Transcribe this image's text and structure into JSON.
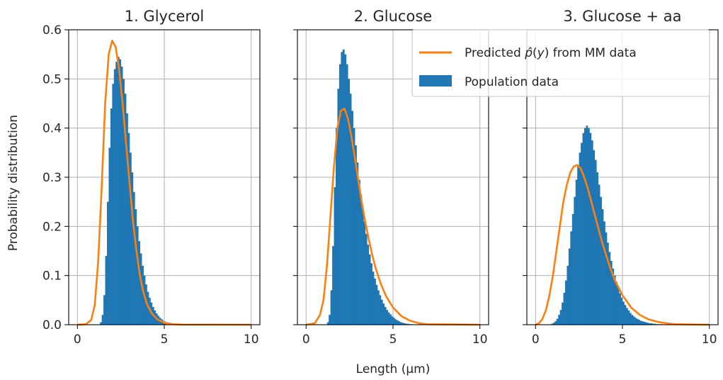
{
  "chart_data": [
    {
      "type": "bar",
      "title": "1. Glycerol",
      "xlim": [
        -0.5,
        10.5
      ],
      "ylim": [
        0,
        0.6
      ],
      "xticks": [
        "0",
        "5",
        "10"
      ],
      "yticks": [
        "0.0",
        "0.1",
        "0.2",
        "0.3",
        "0.4",
        "0.5",
        "0.6"
      ],
      "grid": true,
      "series": [
        {
          "name": "Population data",
          "kind": "histogram",
          "color": "#1f77b4",
          "x": [
            1.3,
            1.4,
            1.5,
            1.6,
            1.7,
            1.8,
            1.9,
            2.0,
            2.1,
            2.2,
            2.3,
            2.4,
            2.5,
            2.6,
            2.7,
            2.8,
            2.9,
            3.0,
            3.1,
            3.2,
            3.3,
            3.4,
            3.5,
            3.6,
            3.7,
            3.8,
            3.9,
            4.0,
            4.1,
            4.2,
            4.3,
            4.4,
            4.5,
            4.6,
            4.7,
            4.8,
            4.9,
            5.0,
            5.1,
            5.2,
            5.3,
            5.4,
            5.5,
            5.6,
            5.7,
            5.8,
            5.9
          ],
          "values": [
            0.005,
            0.02,
            0.06,
            0.14,
            0.25,
            0.36,
            0.44,
            0.49,
            0.52,
            0.535,
            0.545,
            0.54,
            0.525,
            0.5,
            0.47,
            0.43,
            0.39,
            0.35,
            0.31,
            0.27,
            0.235,
            0.2,
            0.17,
            0.145,
            0.12,
            0.1,
            0.082,
            0.067,
            0.055,
            0.045,
            0.036,
            0.029,
            0.023,
            0.018,
            0.014,
            0.011,
            0.008,
            0.006,
            0.005,
            0.004,
            0.003,
            0.002,
            0.002,
            0.001,
            0.001,
            0.001,
            0.001
          ]
        },
        {
          "name": "Predicted $\\hat{p}(y)$ from MM data",
          "kind": "line",
          "color": "#ff7f0e",
          "x": [
            0,
            0.5,
            0.8,
            1.0,
            1.2,
            1.4,
            1.6,
            1.8,
            2.0,
            2.2,
            2.4,
            2.6,
            2.8,
            3.0,
            3.2,
            3.4,
            3.6,
            3.8,
            4.0,
            4.3,
            4.6,
            5.0,
            5.5,
            6.0,
            10.0
          ],
          "values": [
            0,
            0.001,
            0.01,
            0.04,
            0.13,
            0.28,
            0.45,
            0.55,
            0.578,
            0.565,
            0.52,
            0.45,
            0.37,
            0.29,
            0.21,
            0.15,
            0.1,
            0.066,
            0.042,
            0.022,
            0.011,
            0.004,
            0.001,
            0.0003,
            0
          ]
        }
      ]
    },
    {
      "type": "bar",
      "title": "2. Glucose",
      "xlim": [
        -0.5,
        10.5
      ],
      "ylim": [
        0,
        0.6
      ],
      "xticks": [
        "0",
        "5",
        "10"
      ],
      "grid": true,
      "series": [
        {
          "name": "Population data",
          "kind": "histogram",
          "color": "#1f77b4",
          "x": [
            1.2,
            1.3,
            1.4,
            1.5,
            1.6,
            1.7,
            1.8,
            1.9,
            2.0,
            2.1,
            2.2,
            2.3,
            2.4,
            2.5,
            2.6,
            2.7,
            2.8,
            2.9,
            3.0,
            3.1,
            3.2,
            3.3,
            3.4,
            3.5,
            3.6,
            3.7,
            3.8,
            3.9,
            4.0,
            4.1,
            4.2,
            4.3,
            4.4,
            4.5,
            4.6,
            4.7,
            4.8,
            4.9,
            5.0,
            5.1,
            5.2,
            5.3,
            5.4,
            5.5,
            5.6,
            5.7,
            5.8,
            5.9,
            6.0
          ],
          "values": [
            0.005,
            0.02,
            0.07,
            0.16,
            0.28,
            0.4,
            0.48,
            0.53,
            0.555,
            0.56,
            0.55,
            0.53,
            0.5,
            0.47,
            0.435,
            0.4,
            0.365,
            0.33,
            0.295,
            0.265,
            0.235,
            0.21,
            0.185,
            0.163,
            0.143,
            0.125,
            0.108,
            0.094,
            0.081,
            0.07,
            0.06,
            0.051,
            0.043,
            0.036,
            0.03,
            0.025,
            0.021,
            0.017,
            0.014,
            0.011,
            0.009,
            0.007,
            0.005,
            0.004,
            0.003,
            0.002,
            0.002,
            0.001,
            0.001
          ]
        },
        {
          "name": "Predicted $\\hat{p}(y)$ from MM data",
          "kind": "line",
          "color": "#ff7f0e",
          "x": [
            0,
            0.5,
            0.8,
            1.0,
            1.2,
            1.4,
            1.6,
            1.8,
            2.0,
            2.2,
            2.4,
            2.6,
            2.8,
            3.0,
            3.2,
            3.4,
            3.6,
            3.8,
            4.0,
            4.3,
            4.6,
            5.0,
            5.5,
            6.0,
            6.5,
            7.0,
            10.0
          ],
          "values": [
            0,
            0.003,
            0.02,
            0.05,
            0.12,
            0.22,
            0.32,
            0.4,
            0.435,
            0.44,
            0.42,
            0.385,
            0.34,
            0.295,
            0.25,
            0.21,
            0.175,
            0.143,
            0.115,
            0.083,
            0.058,
            0.035,
            0.017,
            0.008,
            0.003,
            0.001,
            0
          ]
        }
      ]
    },
    {
      "type": "bar",
      "title": "3. Glucose + aa",
      "xlim": [
        -0.5,
        10.5
      ],
      "ylim": [
        0,
        0.6
      ],
      "xticks": [
        "0",
        "5",
        "10"
      ],
      "grid": true,
      "series": [
        {
          "name": "Population data",
          "kind": "histogram",
          "color": "#1f77b4",
          "x": [
            0.9,
            1.0,
            1.1,
            1.2,
            1.3,
            1.4,
            1.5,
            1.6,
            1.7,
            1.8,
            1.9,
            2.0,
            2.1,
            2.2,
            2.3,
            2.4,
            2.5,
            2.6,
            2.7,
            2.8,
            2.9,
            3.0,
            3.1,
            3.2,
            3.3,
            3.4,
            3.5,
            3.6,
            3.7,
            3.8,
            3.9,
            4.0,
            4.1,
            4.2,
            4.3,
            4.4,
            4.5,
            4.6,
            4.7,
            4.8,
            4.9,
            5.0,
            5.1,
            5.2,
            5.3,
            5.4,
            5.5,
            5.6,
            5.7,
            5.8,
            5.9,
            6.0,
            6.1,
            6.2,
            6.3,
            6.4,
            6.5,
            6.6,
            6.7,
            6.8,
            6.9,
            7.0,
            7.1,
            7.2
          ],
          "values": [
            0.002,
            0.004,
            0.007,
            0.012,
            0.02,
            0.03,
            0.045,
            0.065,
            0.09,
            0.12,
            0.155,
            0.19,
            0.225,
            0.26,
            0.295,
            0.325,
            0.35,
            0.37,
            0.39,
            0.4,
            0.405,
            0.4,
            0.39,
            0.375,
            0.355,
            0.335,
            0.31,
            0.285,
            0.26,
            0.235,
            0.21,
            0.188,
            0.167,
            0.148,
            0.13,
            0.114,
            0.1,
            0.087,
            0.075,
            0.064,
            0.055,
            0.047,
            0.04,
            0.034,
            0.029,
            0.024,
            0.02,
            0.017,
            0.014,
            0.012,
            0.01,
            0.008,
            0.007,
            0.006,
            0.005,
            0.004,
            0.003,
            0.003,
            0.002,
            0.002,
            0.001,
            0.001,
            0.001,
            0.001
          ]
        },
        {
          "name": "Predicted $\\hat{p}(y)$ from MM data",
          "kind": "line",
          "color": "#ff7f0e",
          "x": [
            0,
            0.2,
            0.4,
            0.6,
            0.8,
            1.0,
            1.2,
            1.4,
            1.6,
            1.8,
            2.0,
            2.2,
            2.4,
            2.6,
            2.8,
            3.0,
            3.2,
            3.4,
            3.6,
            3.8,
            4.0,
            4.3,
            4.6,
            5.0,
            5.5,
            6.0,
            6.5,
            7.0,
            7.5,
            8.0,
            10.0
          ],
          "values": [
            0,
            0.003,
            0.012,
            0.03,
            0.06,
            0.1,
            0.15,
            0.2,
            0.25,
            0.285,
            0.31,
            0.322,
            0.325,
            0.318,
            0.3,
            0.278,
            0.252,
            0.225,
            0.198,
            0.172,
            0.148,
            0.115,
            0.088,
            0.06,
            0.035,
            0.02,
            0.011,
            0.006,
            0.003,
            0.001,
            0
          ]
        }
      ]
    }
  ],
  "axis_labels": {
    "x": "Length (μm)",
    "y": "Probability distribution"
  },
  "legend": {
    "placement": "top-right",
    "entries": [
      {
        "label": "Predicted $\\hat{p}(y)$ from MM data",
        "color": "#ff7f0e",
        "kind": "line"
      },
      {
        "label": "Population data",
        "color": "#1f77b4",
        "kind": "patch"
      }
    ]
  }
}
